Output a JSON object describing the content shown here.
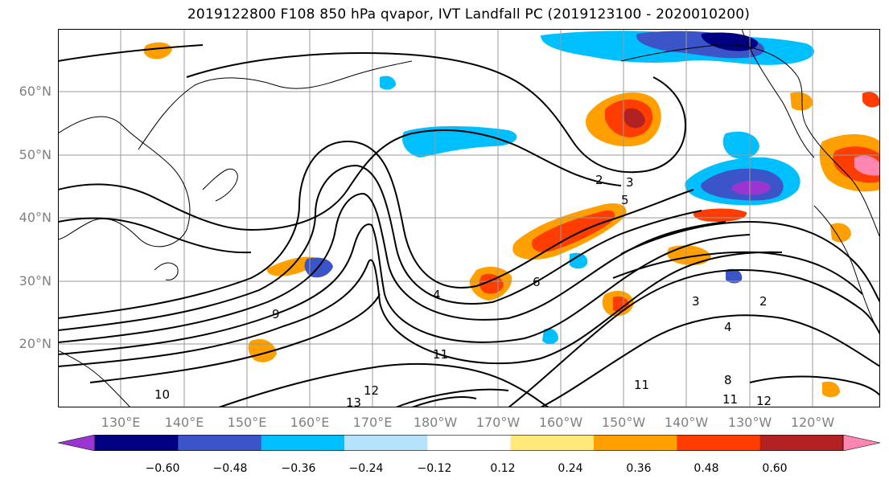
{
  "title": "2019122800 F108 850 hPa qvapor, IVT Landfall PC (2019123100 - 2020010200)",
  "map": {
    "lat_labels": [
      "60°N",
      "50°N",
      "40°N",
      "30°N",
      "20°N"
    ],
    "lon_labels": [
      "130°E",
      "140°E",
      "150°E",
      "160°E",
      "170°E",
      "180°W",
      "170°W",
      "160°W",
      "150°W",
      "140°W",
      "130°W",
      "120°W"
    ],
    "contour_labels": [
      "2",
      "3",
      "5",
      "6",
      "4",
      "9",
      "11",
      "12",
      "13",
      "10",
      "8",
      "3",
      "2",
      "4",
      "11",
      "12",
      "11"
    ],
    "colors": {
      "land_outline": "#000000",
      "grid": "#9a9a9a"
    }
  },
  "colorbar": {
    "ticks": [
      "−0.60",
      "−0.48",
      "−0.36",
      "−0.24",
      "−0.12",
      "0.12",
      "0.24",
      "0.36",
      "0.48",
      "0.60"
    ],
    "colors": [
      "#9a35d1",
      "#000080",
      "#3b55c9",
      "#00bfff",
      "#b4e3fb",
      "#ffffff",
      "#ffe97a",
      "#ff9f00",
      "#ff3d00",
      "#b22222",
      "#ff86b0"
    ]
  }
}
